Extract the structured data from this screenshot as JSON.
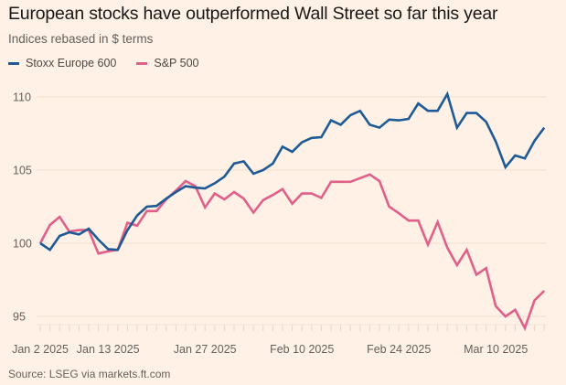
{
  "header": {
    "title": "European stocks have outperformed Wall Street so far this year",
    "subtitle": "Indices rebased in $ terms"
  },
  "legend": [
    {
      "label": "Stoxx Europe 600",
      "color": "#1d5a96"
    },
    {
      "label": "S&P 500",
      "color": "#e0608a"
    }
  ],
  "footer": {
    "source": "Source: LSEG via markets.ft.com"
  },
  "chart_data": {
    "type": "line",
    "title": "European stocks have outperformed Wall Street so far this year",
    "subtitle": "Indices rebased in $ terms",
    "xlabel": "",
    "ylabel": "",
    "ylim": [
      94,
      110.5
    ],
    "yticks": [
      95,
      100,
      105,
      110
    ],
    "grid": true,
    "legend_position": "top-left",
    "x": [
      "2025-01-02",
      "2025-01-03",
      "2025-01-06",
      "2025-01-07",
      "2025-01-08",
      "2025-01-09",
      "2025-01-10",
      "2025-01-13",
      "2025-01-14",
      "2025-01-15",
      "2025-01-16",
      "2025-01-17",
      "2025-01-20",
      "2025-01-21",
      "2025-01-22",
      "2025-01-23",
      "2025-01-24",
      "2025-01-27",
      "2025-01-28",
      "2025-01-29",
      "2025-01-30",
      "2025-01-31",
      "2025-02-03",
      "2025-02-04",
      "2025-02-05",
      "2025-02-06",
      "2025-02-07",
      "2025-02-10",
      "2025-02-11",
      "2025-02-12",
      "2025-02-13",
      "2025-02-14",
      "2025-02-17",
      "2025-02-18",
      "2025-02-19",
      "2025-02-20",
      "2025-02-21",
      "2025-02-24",
      "2025-02-25",
      "2025-02-26",
      "2025-02-27",
      "2025-02-28",
      "2025-03-03",
      "2025-03-04",
      "2025-03-05",
      "2025-03-06",
      "2025-03-07",
      "2025-03-10",
      "2025-03-11",
      "2025-03-12",
      "2025-03-13",
      "2025-03-14",
      "2025-03-17"
    ],
    "xticks": [
      {
        "index": 0,
        "label": "Jan 2 2025"
      },
      {
        "index": 7,
        "label": "Jan 13 2025"
      },
      {
        "index": 17,
        "label": "Jan 27 2025"
      },
      {
        "index": 27,
        "label": "Feb 10 2025"
      },
      {
        "index": 37,
        "label": "Feb 24 2025"
      },
      {
        "index": 47,
        "label": "Mar 10 2025"
      }
    ],
    "series": [
      {
        "name": "Stoxx Europe 600",
        "color": "#1d5a96",
        "values": [
          100.0,
          99.55,
          100.5,
          100.75,
          100.6,
          101.0,
          100.25,
          99.6,
          99.55,
          100.9,
          101.9,
          102.5,
          102.55,
          103.05,
          103.5,
          103.9,
          103.8,
          103.75,
          104.1,
          104.55,
          105.45,
          105.6,
          104.75,
          105.0,
          105.45,
          106.6,
          106.25,
          106.9,
          107.2,
          107.25,
          108.4,
          108.1,
          108.75,
          109.05,
          108.1,
          107.9,
          108.45,
          108.4,
          108.5,
          109.55,
          109.05,
          109.05,
          110.2,
          107.9,
          108.9,
          108.9,
          108.3,
          106.95,
          105.2,
          106.0,
          105.8,
          107.0,
          107.9
        ]
      },
      {
        "name": "S&P 500",
        "color": "#e0608a",
        "values": [
          100.0,
          101.25,
          101.8,
          100.8,
          100.9,
          100.9,
          99.3,
          99.45,
          99.55,
          101.4,
          101.2,
          102.2,
          102.2,
          103.0,
          103.6,
          104.25,
          103.9,
          102.45,
          103.4,
          103.0,
          103.5,
          103.05,
          102.1,
          102.95,
          103.3,
          103.7,
          102.7,
          103.4,
          103.4,
          103.1,
          104.2,
          104.2,
          104.2,
          104.45,
          104.7,
          104.25,
          102.5,
          102.05,
          101.55,
          101.55,
          99.9,
          101.45,
          99.7,
          98.5,
          99.55,
          97.85,
          98.3,
          95.7,
          95.0,
          95.45,
          94.2,
          96.1,
          96.75
        ]
      }
    ]
  }
}
